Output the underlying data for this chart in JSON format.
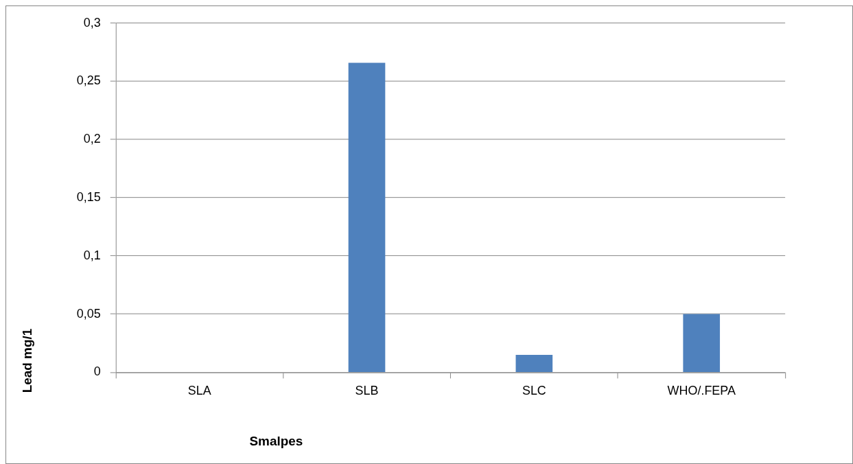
{
  "chart_data": {
    "type": "bar",
    "xlabel": "Smalpes",
    "ylabel": "Lead mg/1",
    "categories": [
      "SLA",
      "SLB",
      "SLC",
      "WHO/.FEPA"
    ],
    "values": [
      0,
      0.266,
      0.015,
      0.05
    ],
    "color": "#4f81bd",
    "ylim": [
      0,
      0.3
    ],
    "yticks": [
      0,
      {
        "value": 0.05,
        "label": "0,05"
      },
      {
        "value": 0.1,
        "label": "0,1"
      },
      {
        "value": 0.15,
        "label": "0,15"
      },
      {
        "value": 0.2,
        "label": "0,2"
      },
      {
        "value": 0.25,
        "label": "0,25"
      },
      {
        "value": 0.3,
        "label": "0,3"
      }
    ],
    "grid": "y",
    "legend": false
  }
}
